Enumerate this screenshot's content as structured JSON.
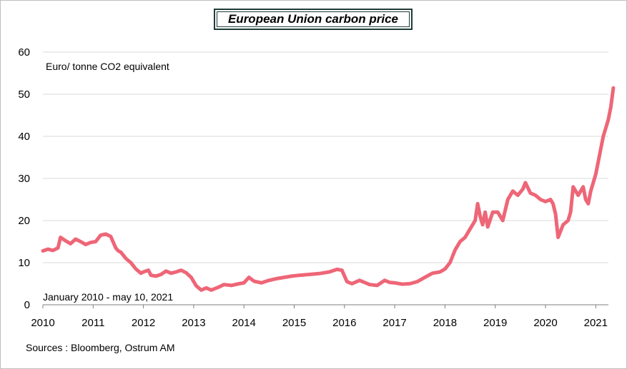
{
  "chart_data": {
    "type": "line",
    "title": "European Union carbon price",
    "ylabel": "Euro/ tonne  CO2 equivalent",
    "period_note": "January 2010 - may 10, 2021",
    "source": "Sources : Bloomberg,  Ostrum  AM",
    "ylim": [
      0,
      60
    ],
    "yticks": [
      "0",
      "10",
      "20",
      "30",
      "40",
      "50",
      "60"
    ],
    "xlim": [
      2010,
      2021.5
    ],
    "xticks": [
      "2010",
      "2011",
      "2012",
      "2013",
      "2014",
      "2015",
      "2016",
      "2017",
      "2018",
      "2019",
      "2020",
      "2021"
    ],
    "grid": "horizontal",
    "line_color": "#ee6677",
    "series": [
      {
        "x": [
          2010.0,
          2010.1,
          2010.2,
          2010.3,
          2010.35,
          2010.45,
          2010.55,
          2010.65,
          2010.75,
          2010.85,
          2010.95,
          2011.05,
          2011.15,
          2011.25,
          2011.35,
          2011.45,
          2011.5,
          2011.55,
          2011.65,
          2011.75,
          2011.85,
          2011.95,
          2012.0,
          2012.1,
          2012.15,
          2012.25,
          2012.35,
          2012.45,
          2012.55,
          2012.65,
          2012.75,
          2012.85,
          2012.95,
          2013.05,
          2013.15,
          2013.25,
          2013.35,
          2013.5,
          2013.6,
          2013.75,
          2013.9,
          2014.0,
          2014.1,
          2014.2,
          2014.35,
          2014.5,
          2014.65,
          2014.8,
          2014.95,
          2015.1,
          2015.3,
          2015.5,
          2015.7,
          2015.85,
          2015.95,
          2016.05,
          2016.15,
          2016.3,
          2016.5,
          2016.65,
          2016.8,
          2016.9,
          2017.0,
          2017.15,
          2017.3,
          2017.45,
          2017.6,
          2017.75,
          2017.9,
          2018.0,
          2018.1,
          2018.2,
          2018.3,
          2018.4,
          2018.5,
          2018.6,
          2018.65,
          2018.7,
          2018.75,
          2018.8,
          2018.85,
          2018.95,
          2019.05,
          2019.15,
          2019.25,
          2019.35,
          2019.45,
          2019.55,
          2019.6,
          2019.7,
          2019.8,
          2019.9,
          2020.0,
          2020.1,
          2020.15,
          2020.2,
          2020.25,
          2020.35,
          2020.45,
          2020.5,
          2020.55,
          2020.65,
          2020.75,
          2020.8,
          2020.85,
          2020.9,
          2021.0,
          2021.05,
          2021.1,
          2021.15,
          2021.2,
          2021.25,
          2021.3,
          2021.35
        ],
        "values": [
          12.8,
          13.2,
          12.9,
          13.5,
          16.0,
          15.2,
          14.5,
          15.6,
          15.0,
          14.3,
          14.8,
          15.0,
          16.5,
          16.8,
          16.2,
          13.5,
          12.8,
          12.5,
          11.0,
          10.0,
          8.5,
          7.5,
          7.8,
          8.2,
          7.0,
          6.8,
          7.2,
          8.0,
          7.5,
          7.8,
          8.2,
          7.6,
          6.5,
          4.5,
          3.5,
          4.0,
          3.5,
          4.2,
          4.8,
          4.6,
          5.0,
          5.2,
          6.5,
          5.6,
          5.2,
          5.8,
          6.2,
          6.5,
          6.8,
          7.0,
          7.2,
          7.4,
          7.8,
          8.4,
          8.2,
          5.5,
          5.0,
          5.8,
          4.8,
          4.6,
          5.8,
          5.3,
          5.2,
          4.9,
          5.0,
          5.5,
          6.5,
          7.5,
          7.8,
          8.5,
          10.0,
          13.0,
          15.0,
          16.0,
          18.0,
          20.0,
          24.0,
          21.0,
          19.0,
          22.0,
          18.5,
          22.0,
          22.0,
          20.0,
          25.0,
          27.0,
          26.0,
          27.5,
          29.0,
          26.5,
          26.0,
          25.0,
          24.5,
          25.0,
          24.0,
          21.5,
          16.0,
          19.0,
          20.0,
          22.0,
          28.0,
          26.0,
          28.0,
          25.0,
          24.0,
          27.0,
          31.0,
          34.0,
          37.0,
          40.0,
          42.0,
          44.0,
          47.0,
          51.5
        ]
      }
    ]
  }
}
